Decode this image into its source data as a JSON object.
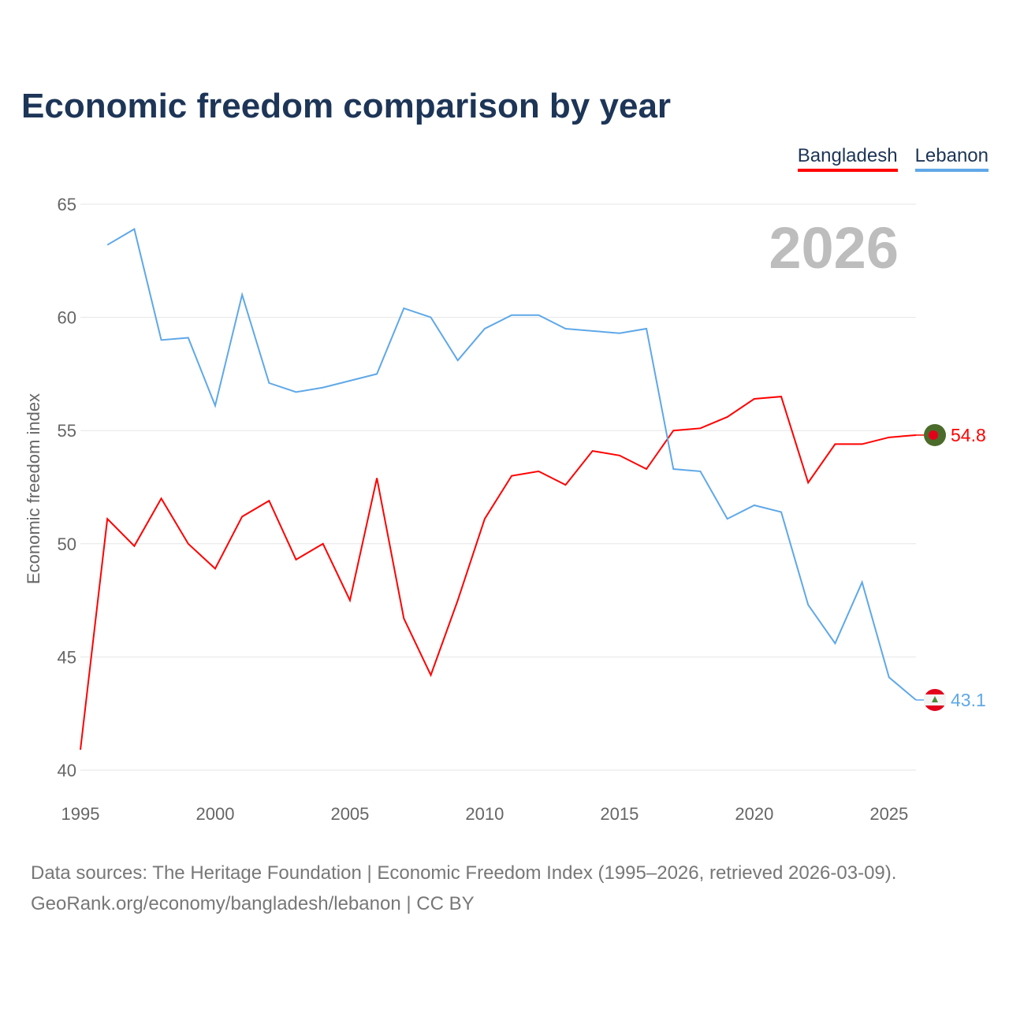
{
  "chart_data": {
    "type": "line",
    "title": "Economic freedom comparison by year",
    "xlabel": "",
    "ylabel": "Economic freedom index",
    "ylim": [
      40,
      65
    ],
    "xlim": [
      1995,
      2026
    ],
    "yticks": [
      40,
      45,
      50,
      55,
      60,
      65
    ],
    "xticks": [
      1995,
      2000,
      2005,
      2010,
      2015,
      2020,
      2025
    ],
    "grid": true,
    "legend_position": "top-right",
    "year_label": "2026",
    "series": [
      {
        "name": "Bangladesh",
        "color": "#ff0000",
        "end_label": "54.8",
        "flag": "bangladesh-flag",
        "x": [
          1995,
          1996,
          1997,
          1998,
          1999,
          2000,
          2001,
          2002,
          2003,
          2004,
          2005,
          2006,
          2007,
          2008,
          2009,
          2010,
          2011,
          2012,
          2013,
          2014,
          2015,
          2016,
          2017,
          2018,
          2019,
          2020,
          2021,
          2022,
          2023,
          2024,
          2025,
          2026
        ],
        "values": [
          40.9,
          51.1,
          49.9,
          52.0,
          50.0,
          48.9,
          51.2,
          51.9,
          49.3,
          50.0,
          47.5,
          52.9,
          46.7,
          44.2,
          47.5,
          51.1,
          53.0,
          53.2,
          52.6,
          54.1,
          53.9,
          53.3,
          55.0,
          55.1,
          55.6,
          56.4,
          56.5,
          52.7,
          54.4,
          54.4,
          54.7,
          54.8
        ]
      },
      {
        "name": "Lebanon",
        "color": "#5fa8e8",
        "end_label": "43.1",
        "flag": "lebanon-flag",
        "x": [
          1996,
          1997,
          1998,
          1999,
          2000,
          2001,
          2002,
          2003,
          2004,
          2005,
          2006,
          2007,
          2008,
          2009,
          2010,
          2011,
          2012,
          2013,
          2014,
          2015,
          2016,
          2017,
          2018,
          2019,
          2020,
          2021,
          2022,
          2023,
          2024,
          2025,
          2026
        ],
        "values": [
          63.2,
          63.9,
          59.0,
          59.1,
          56.1,
          61.0,
          57.1,
          56.7,
          56.9,
          57.2,
          57.5,
          60.4,
          60.0,
          58.1,
          59.5,
          60.1,
          60.1,
          59.5,
          59.4,
          59.3,
          59.5,
          53.3,
          53.2,
          51.1,
          51.7,
          51.4,
          47.3,
          45.6,
          48.3,
          44.1,
          43.1
        ]
      }
    ]
  },
  "footer": {
    "line1": "Data sources: The Heritage Foundation | Economic Freedom Index (1995–2026, retrieved 2026-03-09).",
    "line2": "GeoRank.org/economy/bangladesh/lebanon | CC BY"
  }
}
